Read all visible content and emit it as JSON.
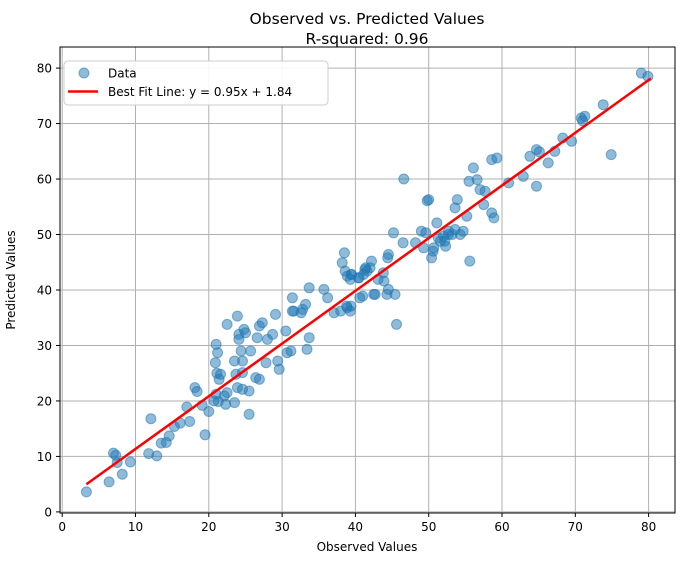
{
  "figure": {
    "title_line1": "Observed vs. Predicted Values",
    "title_line2": "R-squared: 0.96",
    "xlabel": "Observed Values",
    "ylabel": "Predicted Values"
  },
  "legend": {
    "data_label": "Data",
    "fit_label": "Best Fit Line: y = 0.95x + 1.84"
  },
  "colors": {
    "scatter": "#1f77b4",
    "fit_line": "#ff0000",
    "grid": "#b0b0b0",
    "spine": "#000000",
    "legend_border": "#cccccc"
  },
  "chart_data": {
    "type": "scatter",
    "title": "Observed vs. Predicted Values\nR-squared: 0.96",
    "xlabel": "Observed Values",
    "ylabel": "Predicted Values",
    "r_squared": 0.96,
    "grid": true,
    "legend_position": "upper left",
    "xlim": [
      -0.3,
      83.6
    ],
    "ylim": [
      -0.2,
      83.8
    ],
    "xticks": [
      0,
      10,
      20,
      30,
      40,
      50,
      60,
      70,
      80
    ],
    "yticks": [
      0,
      10,
      20,
      30,
      40,
      50,
      60,
      70,
      80
    ],
    "fit": {
      "slope": 0.95,
      "intercept": 1.84,
      "x_start": 3.3,
      "x_end": 80.3
    },
    "points": [
      [
        3.3,
        3.6
      ],
      [
        6.4,
        5.4
      ],
      [
        8.2,
        6.8
      ],
      [
        7.0,
        10.6
      ],
      [
        7.3,
        10.2
      ],
      [
        7.5,
        8.9
      ],
      [
        9.3,
        9.0
      ],
      [
        11.8,
        10.5
      ],
      [
        12.1,
        16.8
      ],
      [
        13.5,
        12.4
      ],
      [
        14.2,
        12.5
      ],
      [
        12.9,
        10.1
      ],
      [
        14.6,
        13.7
      ],
      [
        15.3,
        15.4
      ],
      [
        16.1,
        16.0
      ],
      [
        17.0,
        18.9
      ],
      [
        17.4,
        16.3
      ],
      [
        18.1,
        22.4
      ],
      [
        18.4,
        21.7
      ],
      [
        19.1,
        19.2
      ],
      [
        19.5,
        13.9
      ],
      [
        20.0,
        18.1
      ],
      [
        21.1,
        25.0
      ],
      [
        21.3,
        19.9
      ],
      [
        23.9,
        35.3
      ],
      [
        22.5,
        33.8
      ],
      [
        25.0,
        32.3
      ],
      [
        24.1,
        31.1
      ],
      [
        26.9,
        33.5
      ],
      [
        26.6,
        31.4
      ],
      [
        29.1,
        35.6
      ],
      [
        28.7,
        32.0
      ],
      [
        28.0,
        31.1
      ],
      [
        31.6,
        36.2
      ],
      [
        32.8,
        36.5
      ],
      [
        30.5,
        32.6
      ],
      [
        31.2,
        29.0
      ],
      [
        30.7,
        28.7
      ],
      [
        29.6,
        25.7
      ],
      [
        27.8,
        26.9
      ],
      [
        25.7,
        29.0
      ],
      [
        24.4,
        29.0
      ],
      [
        24.6,
        27.2
      ],
      [
        23.5,
        27.2
      ],
      [
        21.0,
        30.2
      ],
      [
        21.2,
        28.7
      ],
      [
        20.9,
        26.9
      ],
      [
        21.6,
        24.8
      ],
      [
        21.4,
        23.9
      ],
      [
        23.7,
        24.8
      ],
      [
        24.6,
        25.1
      ],
      [
        26.4,
        24.2
      ],
      [
        26.9,
        23.9
      ],
      [
        23.9,
        22.4
      ],
      [
        24.6,
        22.1
      ],
      [
        25.5,
        21.8
      ],
      [
        22.5,
        21.5
      ],
      [
        22.1,
        20.9
      ],
      [
        21.0,
        21.2
      ],
      [
        20.7,
        20.0
      ],
      [
        22.3,
        19.4
      ],
      [
        23.5,
        19.7
      ],
      [
        25.5,
        17.6
      ],
      [
        29.4,
        27.2
      ],
      [
        24.1,
        32.0
      ],
      [
        24.8,
        32.9
      ],
      [
        33.7,
        31.4
      ],
      [
        33.4,
        29.3
      ],
      [
        38.5,
        46.7
      ],
      [
        38.2,
        44.9
      ],
      [
        39.4,
        42.8
      ],
      [
        38.9,
        42.5
      ],
      [
        40.5,
        42.2
      ],
      [
        41.4,
        44.0
      ],
      [
        41.6,
        43.4
      ],
      [
        44.4,
        45.8
      ],
      [
        43.9,
        41.6
      ],
      [
        42.5,
        39.2
      ],
      [
        41.0,
        38.9
      ],
      [
        39.4,
        37.1
      ],
      [
        33.7,
        40.4
      ],
      [
        35.7,
        40.1
      ],
      [
        36.2,
        38.6
      ],
      [
        31.4,
        38.6
      ],
      [
        33.2,
        37.4
      ],
      [
        27.3,
        34.1
      ],
      [
        31.4,
        36.2
      ],
      [
        32.6,
        35.9
      ],
      [
        37.1,
        35.9
      ],
      [
        38.0,
        36.2
      ],
      [
        38.9,
        36.8
      ],
      [
        45.2,
        50.3
      ],
      [
        46.5,
        48.5
      ],
      [
        49.0,
        50.6
      ],
      [
        49.3,
        47.6
      ],
      [
        50.6,
        47.0
      ],
      [
        50.4,
        45.8
      ],
      [
        51.3,
        49.4
      ],
      [
        52.0,
        49.7
      ],
      [
        52.2,
        48.8
      ],
      [
        52.7,
        50.0
      ],
      [
        53.6,
        50.9
      ],
      [
        54.7,
        50.6
      ],
      [
        44.5,
        46.4
      ],
      [
        42.2,
        45.2
      ],
      [
        42.0,
        44.0
      ],
      [
        41.3,
        43.7
      ],
      [
        41.1,
        42.8
      ],
      [
        40.4,
        42.2
      ],
      [
        39.5,
        42.8
      ],
      [
        39.3,
        41.9
      ],
      [
        38.6,
        43.4
      ],
      [
        38.8,
        37.1
      ],
      [
        39.3,
        36.2
      ],
      [
        40.6,
        38.6
      ],
      [
        42.7,
        39.2
      ],
      [
        44.3,
        39.2
      ],
      [
        45.4,
        39.2
      ],
      [
        44.5,
        40.1
      ],
      [
        45.6,
        33.8
      ],
      [
        55.6,
        45.2
      ],
      [
        43.8,
        43.1
      ],
      [
        43.1,
        41.9
      ],
      [
        46.6,
        60.0
      ],
      [
        49.8,
        56.1
      ],
      [
        56.1,
        62.0
      ],
      [
        58.6,
        63.5
      ],
      [
        59.3,
        63.8
      ],
      [
        55.5,
        59.6
      ],
      [
        56.6,
        59.9
      ],
      [
        57.0,
        58.1
      ],
      [
        57.7,
        57.8
      ],
      [
        60.9,
        59.3
      ],
      [
        50.0,
        56.3
      ],
      [
        53.9,
        56.3
      ],
      [
        58.6,
        53.9
      ],
      [
        58.9,
        53.0
      ],
      [
        53.6,
        54.8
      ],
      [
        51.1,
        52.1
      ],
      [
        55.2,
        53.3
      ],
      [
        49.6,
        50.3
      ],
      [
        52.7,
        50.6
      ],
      [
        53.2,
        50.0
      ],
      [
        54.3,
        50.0
      ],
      [
        51.6,
        48.8
      ],
      [
        52.3,
        47.9
      ],
      [
        50.7,
        47.6
      ],
      [
        48.2,
        48.5
      ],
      [
        57.5,
        55.4
      ],
      [
        79.0,
        79.1
      ],
      [
        79.9,
        78.5
      ],
      [
        73.8,
        73.4
      ],
      [
        70.8,
        71.0
      ],
      [
        71.3,
        71.3
      ],
      [
        71.0,
        70.5
      ],
      [
        68.3,
        67.4
      ],
      [
        69.5,
        66.8
      ],
      [
        67.2,
        65.0
      ],
      [
        64.7,
        65.3
      ],
      [
        65.1,
        64.9
      ],
      [
        63.8,
        64.1
      ],
      [
        66.3,
        62.9
      ],
      [
        74.9,
        64.4
      ],
      [
        62.9,
        60.5
      ],
      [
        64.7,
        58.7
      ]
    ]
  }
}
